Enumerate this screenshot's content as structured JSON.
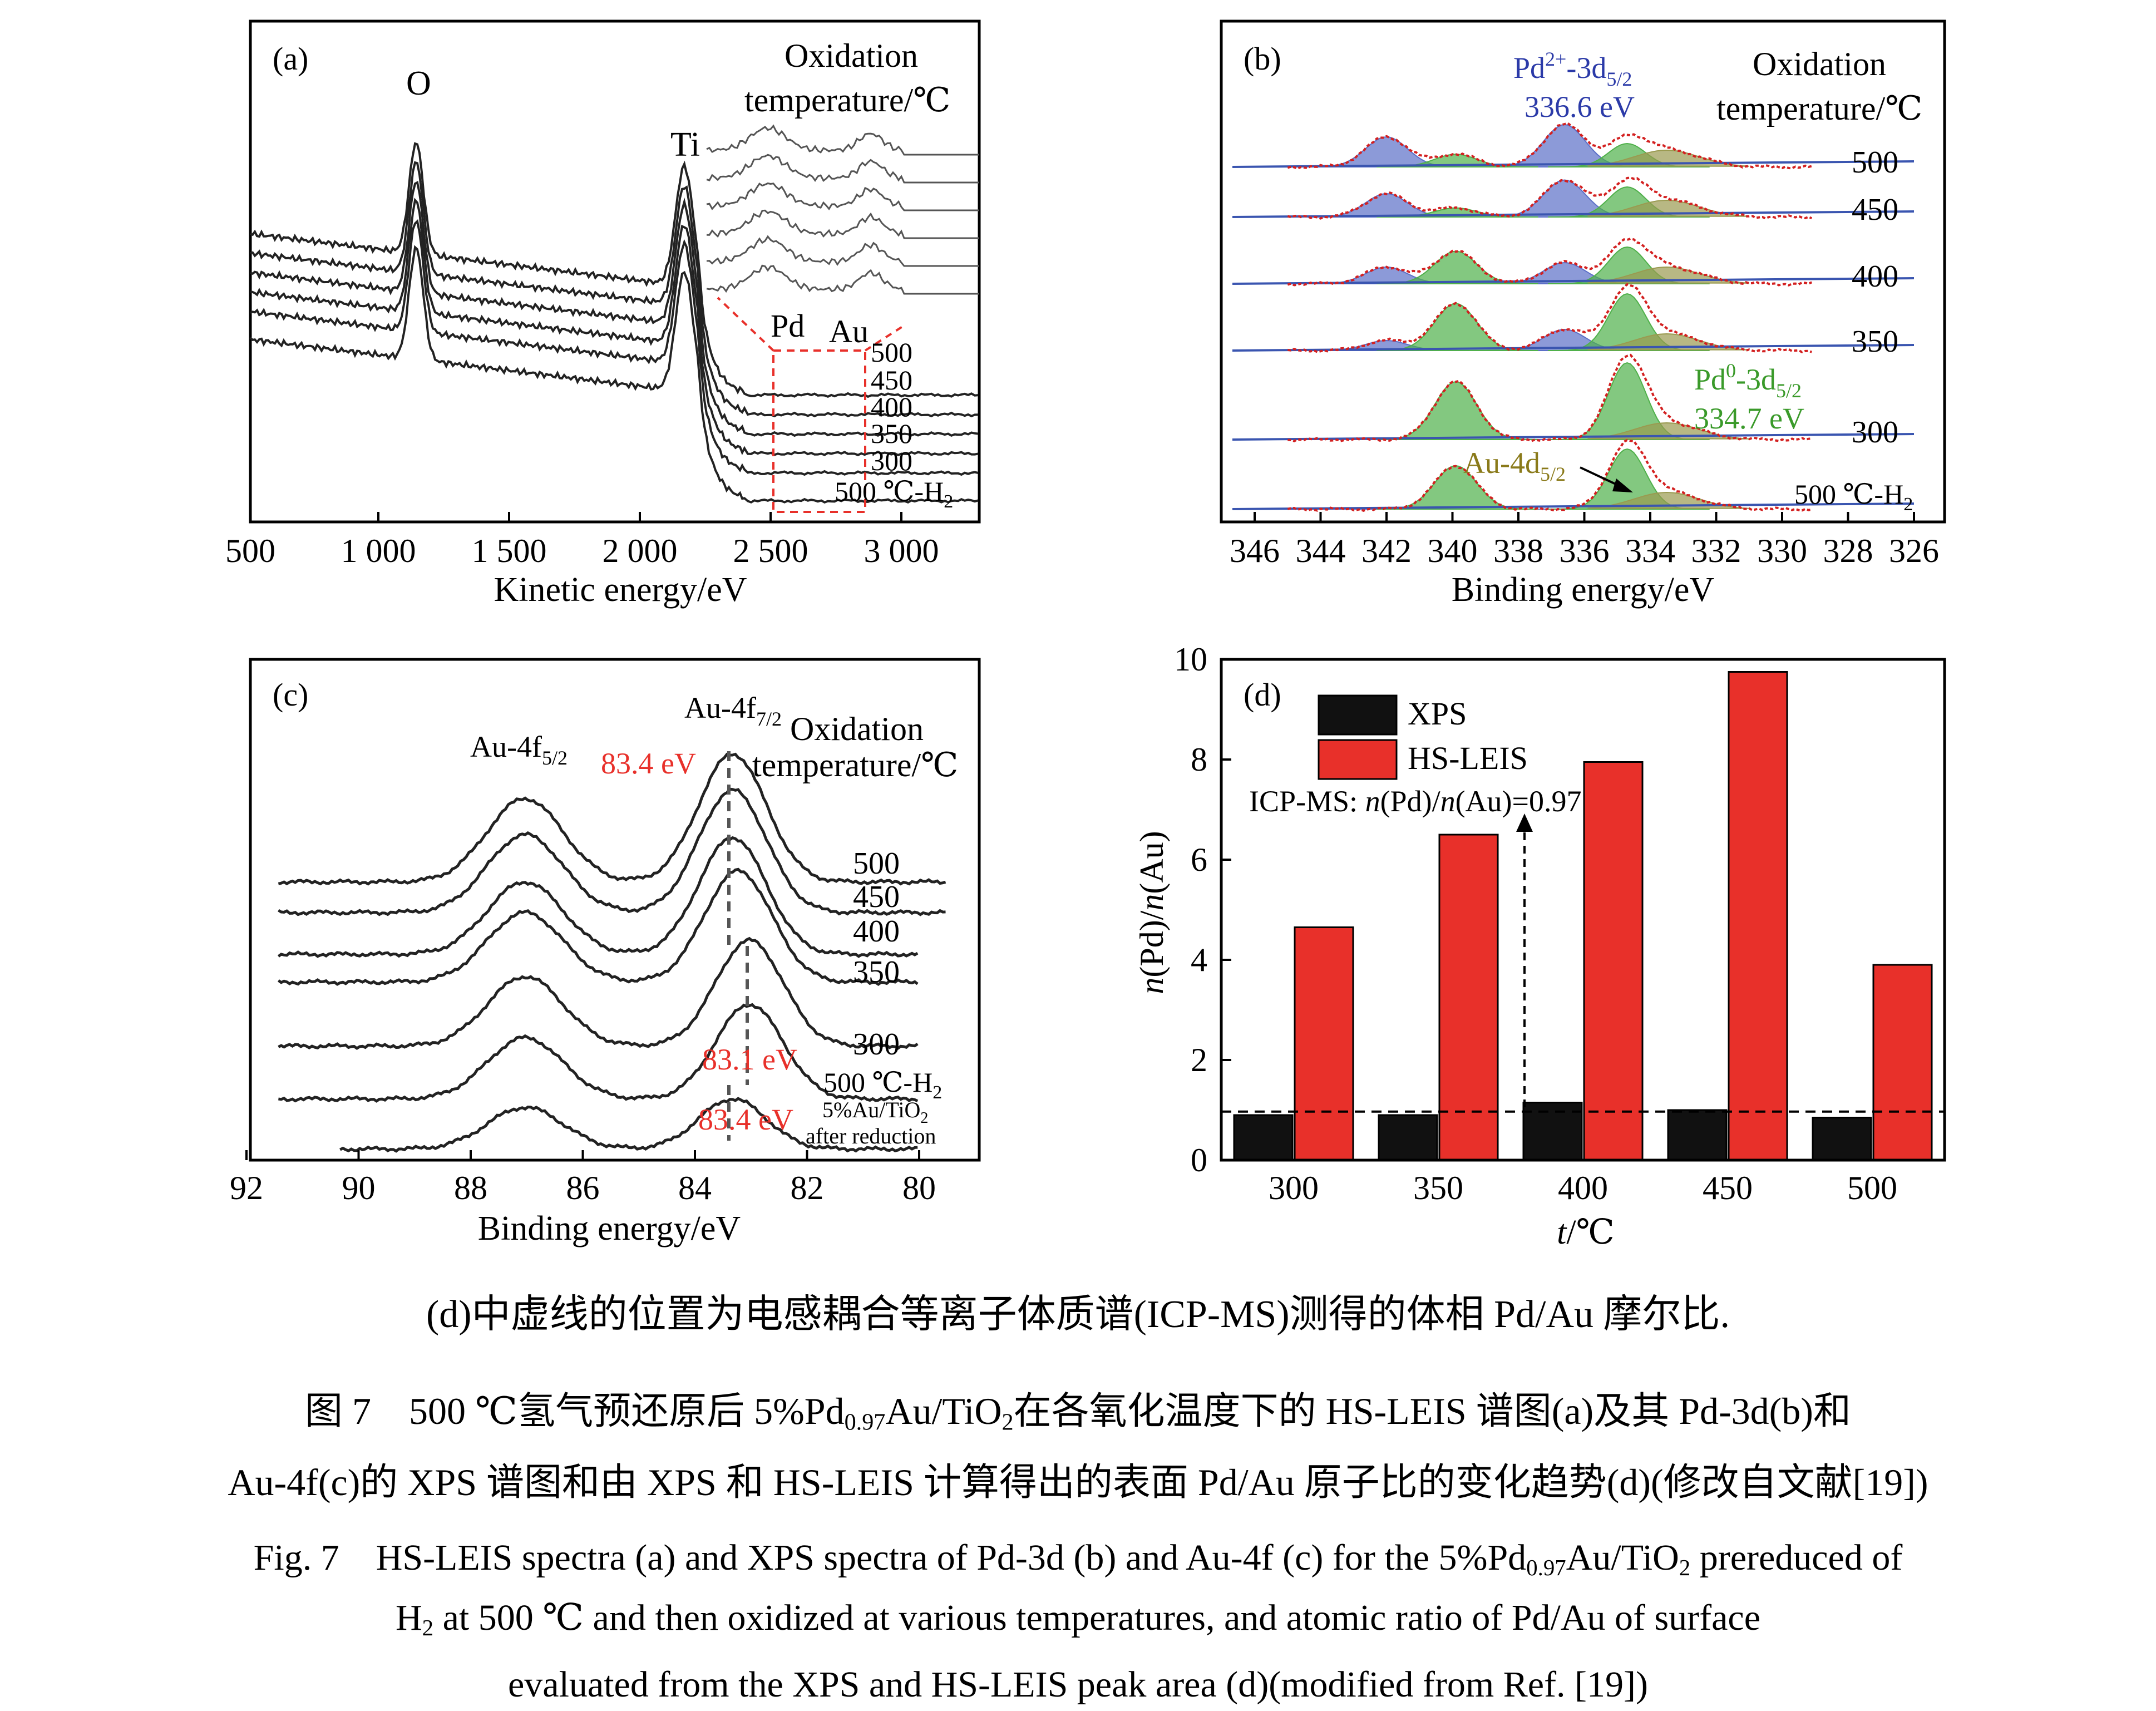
{
  "panels": {
    "a": {
      "label": "(a)",
      "xlabel": "Kinetic energy/eV",
      "xticks": [
        "500",
        "1 000",
        "1 500",
        "2 000",
        "2 500",
        "3 000"
      ],
      "legend_title_1": "Oxidation",
      "legend_title_2": "temperature/℃",
      "peak_O": "O",
      "peak_Ti": "Ti",
      "inset_Pd": "Pd",
      "inset_Au": "Au",
      "series": [
        "500",
        "450",
        "400",
        "350",
        "300"
      ],
      "series_h2_main": "500 ℃-H",
      "series_h2_sub": "2"
    },
    "b": {
      "label": "(b)",
      "xlabel": "Binding energy/eV",
      "xticks": [
        "346",
        "344",
        "342",
        "340",
        "338",
        "336",
        "334",
        "332",
        "330",
        "328",
        "326"
      ],
      "legend_title_1": "Oxidation",
      "legend_title_2": "temperature/℃",
      "pd2_label_1": "Pd",
      "pd2_label_sup": "2+",
      "pd2_label_2": "-3d",
      "pd2_label_sub": "5/2",
      "pd2_energy": "336.6 eV",
      "pd0_label_1": "Pd",
      "pd0_label_sup": "0",
      "pd0_label_2": "-3d",
      "pd0_label_sub": "5/2",
      "pd0_energy": "334.7 eV",
      "au_label_1": "Au-4d",
      "au_label_sub": "5/2",
      "series": [
        "500",
        "450",
        "400",
        "350",
        "300"
      ],
      "series_h2_main": "500 ℃-H",
      "series_h2_sub": "2"
    },
    "c": {
      "label": "(c)",
      "xlabel": "Binding energy/eV",
      "xticks": [
        "92",
        "90",
        "88",
        "86",
        "84",
        "82",
        "80"
      ],
      "legend_title_1": "Oxidation",
      "legend_title_2": "temperature/℃",
      "au52_main": "Au-4f",
      "au52_sub": "5/2",
      "au72_main": "Au-4f",
      "au72_sub": "7/2",
      "energy_top": "83.4 eV",
      "energy_mid": "83.1 eV",
      "energy_bot": "83.4 eV",
      "series": [
        "500",
        "450",
        "400",
        "350",
        "300"
      ],
      "series_h2_main": "500 ℃-H",
      "series_h2_sub": "2",
      "ref_line1_main": "5%Au/TiO",
      "ref_line1_sub": "2",
      "ref_line2": "after reduction"
    },
    "d": {
      "label": "(d)",
      "legend_xps": "XPS",
      "legend_hs": "HS-LEIS",
      "icp_prefix": "ICP-MS: ",
      "icp_n1": "n",
      "icp_pd": "(Pd)/",
      "icp_n2": "n",
      "icp_au": "(Au)=0.97",
      "ylabel_n1": "n",
      "ylabel_pd": "(Pd)/",
      "ylabel_n2": "n",
      "ylabel_au": "(Au)",
      "xlabel_t": "t",
      "xlabel_unit": "/℃"
    }
  },
  "chart_data": {
    "type": "bar",
    "categories": [
      "300",
      "350",
      "400",
      "450",
      "500"
    ],
    "series": [
      {
        "name": "XPS",
        "values": [
          0.9,
          0.9,
          1.15,
          1.0,
          0.85
        ]
      },
      {
        "name": "HS-LEIS",
        "values": [
          4.65,
          6.5,
          7.95,
          9.75,
          3.9
        ]
      }
    ],
    "ylim": [
      0,
      10
    ],
    "yticks": [
      "0",
      "2",
      "4",
      "6",
      "8",
      "10"
    ],
    "reference_line": 0.97,
    "colors": {
      "XPS": "#111111",
      "HS-LEIS": "#e8302a"
    }
  },
  "captions": {
    "note": "(d)中虚线的位置为电感耦合等离子体质谱(ICP-MS)测得的体相 Pd/Au 摩尔比.",
    "zh1_a": "图 7　500 ℃氢气预还原后 5%Pd",
    "zh1_sub": "0.97",
    "zh1_b": "Au/TiO",
    "zh1_sub2": "2",
    "zh1_c": "在各氧化温度下的 HS-LEIS 谱图(a)及其 Pd-3d(b)和",
    "zh2": "Au-4f(c)的 XPS 谱图和由 XPS 和 HS-LEIS 计算得出的表面 Pd/Au 原子比的变化趋势(d)(修改自文献[19])",
    "en1_a": "Fig. 7　HS-LEIS spectra (a) and XPS spectra of Pd-3d (b) and Au-4f (c) for the 5%Pd",
    "en1_sub": "0.97",
    "en1_b": "Au/TiO",
    "en1_sub2": "2",
    "en1_c": " prereduced of",
    "en2_a": "H",
    "en2_sub": "2",
    "en2_b": " at 500 ℃ and then oxidized at various temperatures, and atomic ratio of Pd/Au of surface",
    "en3": "evaluated from the XPS and HS-LEIS peak area (d)(modified from Ref. [19])"
  }
}
